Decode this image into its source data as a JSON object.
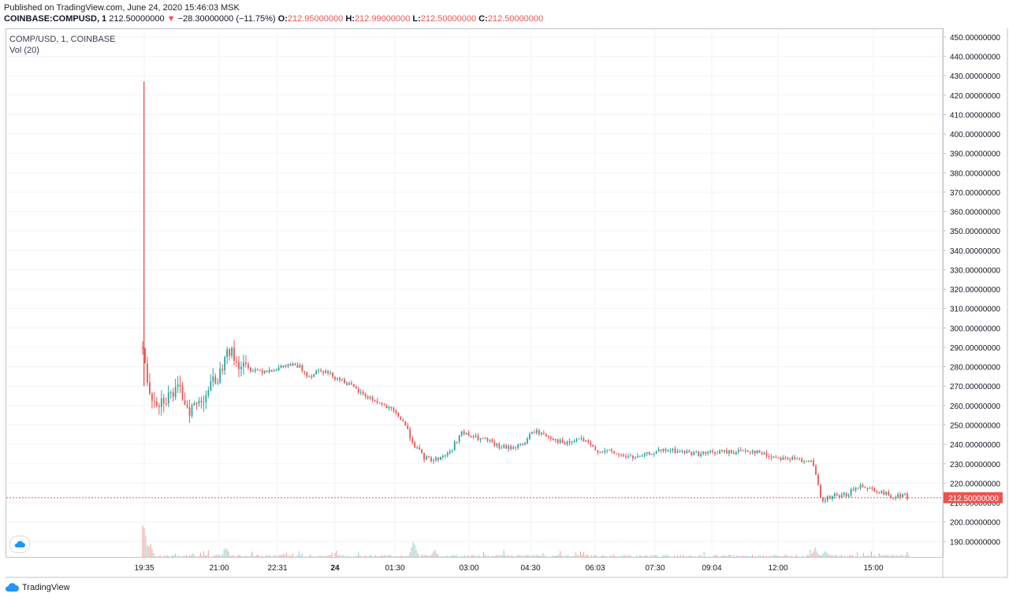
{
  "header": {
    "published": "Published on TradingView.com, June 24, 2020 15:46:03 MSK",
    "symbol": "COINBASE:COMPUSD, 1",
    "last": "212.50000000",
    "change": "−28.30000000 (−11.75%)",
    "o_label": "O:",
    "o": "212.95000000",
    "h_label": "H:",
    "h": "212.99000000",
    "l_label": "L:",
    "l": "212.50000000",
    "c_label": "C:",
    "c": "212.50000000"
  },
  "legend": {
    "series": "COMP/USD, 1, COINBASE",
    "volume": "Vol (20)"
  },
  "footer": {
    "brand": "TradingView"
  },
  "colors": {
    "up": "#26a69a",
    "down": "#ef5350",
    "grid": "#f0f3fa",
    "axis": "#bfc3cc"
  },
  "chart_data": {
    "type": "candlestick",
    "y_ticks": [
      "190.00000000",
      "200.00000000",
      "210.00000000",
      "220.00000000",
      "230.00000000",
      "240.00000000",
      "250.00000000",
      "260.00000000",
      "270.00000000",
      "280.00000000",
      "290.00000000",
      "300.00000000",
      "310.00000000",
      "320.00000000",
      "330.00000000",
      "340.00000000",
      "350.00000000",
      "360.00000000",
      "370.00000000",
      "380.00000000",
      "390.00000000",
      "400.00000000",
      "410.00000000",
      "420.00000000",
      "430.00000000",
      "440.00000000",
      "450.00000000"
    ],
    "ylim": [
      182,
      454
    ],
    "x_ticks": [
      "19:35",
      "21:00",
      "22:31",
      "24",
      "01:30",
      "03:00",
      "04:30",
      "06:03",
      "07:30",
      "09:04",
      "12:00",
      "15:00"
    ],
    "last_price": 212.5,
    "last_price_label": "212.50000000",
    "price_path": [
      [
        0,
        290
      ],
      [
        0.5,
        285
      ],
      [
        1,
        278
      ],
      [
        3,
        266
      ],
      [
        6,
        262
      ],
      [
        10,
        265
      ],
      [
        14,
        268
      ],
      [
        18,
        258
      ],
      [
        22,
        262
      ],
      [
        26,
        270
      ],
      [
        30,
        277
      ],
      [
        32,
        292
      ],
      [
        36,
        282
      ],
      [
        40,
        279
      ],
      [
        46,
        278
      ],
      [
        52,
        279
      ],
      [
        56,
        281
      ],
      [
        60,
        280
      ],
      [
        64,
        275
      ],
      [
        68,
        279
      ],
      [
        72,
        276
      ],
      [
        78,
        272
      ],
      [
        84,
        266
      ],
      [
        90,
        262
      ],
      [
        96,
        257
      ],
      [
        100,
        252
      ],
      [
        104,
        240
      ],
      [
        108,
        233
      ],
      [
        112,
        232
      ],
      [
        118,
        236
      ],
      [
        122,
        246
      ],
      [
        126,
        244
      ],
      [
        132,
        242
      ],
      [
        136,
        239
      ],
      [
        140,
        238
      ],
      [
        146,
        240
      ],
      [
        150,
        247
      ],
      [
        156,
        244
      ],
      [
        162,
        240
      ],
      [
        168,
        243
      ],
      [
        174,
        237
      ],
      [
        180,
        236
      ],
      [
        184,
        234
      ],
      [
        190,
        233
      ],
      [
        196,
        236
      ],
      [
        202,
        237
      ],
      [
        208,
        236
      ],
      [
        214,
        235
      ],
      [
        220,
        236
      ],
      [
        226,
        236
      ],
      [
        232,
        237
      ],
      [
        236,
        236
      ],
      [
        240,
        234
      ],
      [
        246,
        233
      ],
      [
        252,
        232
      ],
      [
        256,
        232
      ],
      [
        258,
        225
      ],
      [
        260,
        212
      ],
      [
        262,
        210
      ],
      [
        264,
        213
      ],
      [
        268,
        212
      ],
      [
        272,
        216
      ],
      [
        276,
        219
      ],
      [
        280,
        217
      ],
      [
        284,
        215
      ],
      [
        288,
        213
      ],
      [
        292,
        214
      ],
      [
        294,
        212.5
      ]
    ],
    "spike": {
      "time": 0.5,
      "high": 427,
      "low": 270
    },
    "volume_peaks": [
      [
        0,
        0.93
      ],
      [
        1,
        0.55
      ],
      [
        3,
        0.28
      ],
      [
        32,
        0.2
      ],
      [
        104,
        0.35
      ],
      [
        112,
        0.18
      ],
      [
        258,
        0.22
      ],
      [
        262,
        0.16
      ]
    ]
  }
}
